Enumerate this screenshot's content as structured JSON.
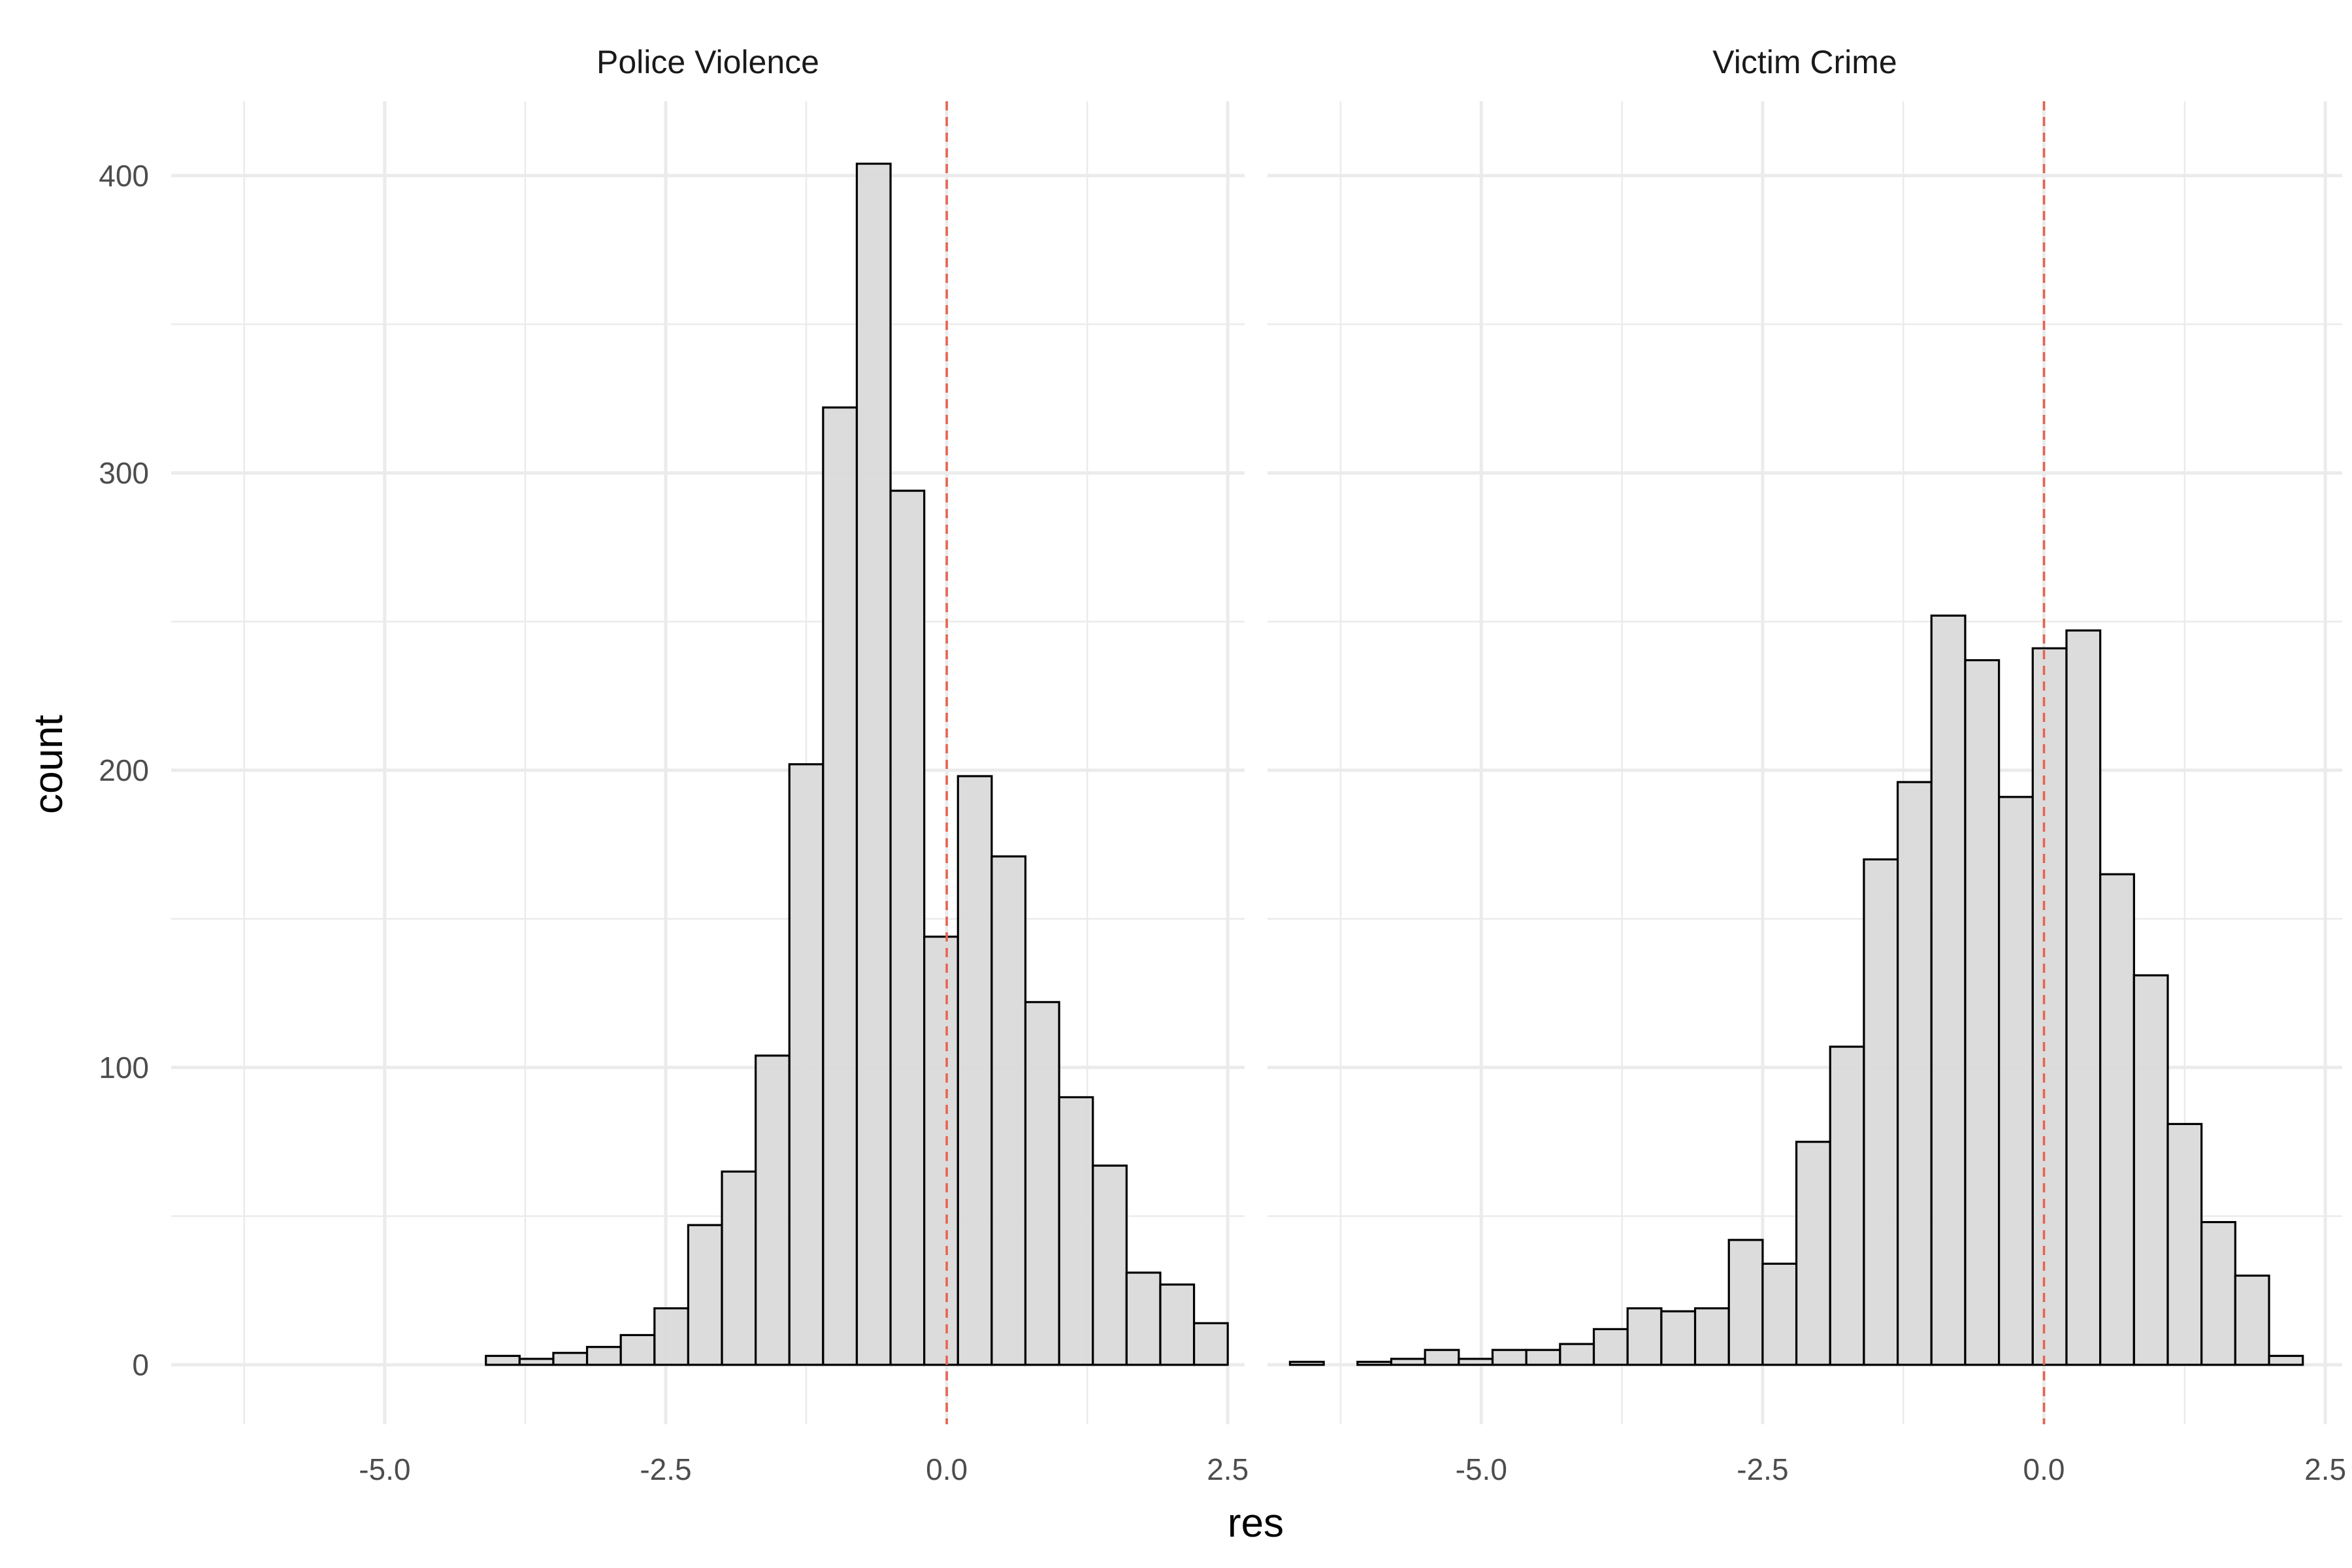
{
  "chart_data": {
    "type": "histogram",
    "xlabel": "res",
    "ylabel": "count",
    "xlim": [
      -6.9,
      2.65
    ],
    "ylim": [
      -20,
      425
    ],
    "x_major_ticks": [
      -5.0,
      -2.5,
      0.0,
      2.5
    ],
    "x_tick_labels": [
      "-5.0",
      "-2.5",
      "0.0",
      "2.5"
    ],
    "x_minor_ticks": [
      -6.25,
      -3.75,
      -1.25,
      1.25
    ],
    "y_major_ticks": [
      0,
      100,
      200,
      300,
      400
    ],
    "y_tick_labels": [
      "0",
      "100",
      "200",
      "300",
      "400"
    ],
    "y_minor_ticks": [
      50,
      150,
      250,
      350
    ],
    "grid": true,
    "reference_line": {
      "x": 0.0,
      "style": "dashed",
      "color": "#e8624f"
    },
    "bar_fill": "#d9d9d9",
    "bar_outline": "#000000",
    "facets": [
      {
        "title": "Police Violence",
        "bins": [
          {
            "x0": -6.5,
            "x1": -6.2,
            "count": 0
          },
          {
            "x0": -6.2,
            "x1": -5.9,
            "count": 0
          },
          {
            "x0": -5.9,
            "x1": -5.6,
            "count": 0
          },
          {
            "x0": -5.6,
            "x1": -5.3,
            "count": 0
          },
          {
            "x0": -5.3,
            "x1": -5.0,
            "count": 0
          },
          {
            "x0": -5.0,
            "x1": -4.7,
            "count": 0
          },
          {
            "x0": -4.7,
            "x1": -4.4,
            "count": 0
          },
          {
            "x0": -4.4,
            "x1": -4.1,
            "count": 0
          },
          {
            "x0": -4.1,
            "x1": -3.8,
            "count": 3
          },
          {
            "x0": -3.8,
            "x1": -3.5,
            "count": 2
          },
          {
            "x0": -3.5,
            "x1": -3.2,
            "count": 4
          },
          {
            "x0": -3.2,
            "x1": -2.9,
            "count": 6
          },
          {
            "x0": -2.9,
            "x1": -2.6,
            "count": 10
          },
          {
            "x0": -2.6,
            "x1": -2.3,
            "count": 19
          },
          {
            "x0": -2.3,
            "x1": -2.0,
            "count": 47
          },
          {
            "x0": -2.0,
            "x1": -1.7,
            "count": 65
          },
          {
            "x0": -1.7,
            "x1": -1.4,
            "count": 104
          },
          {
            "x0": -1.4,
            "x1": -1.1,
            "count": 202
          },
          {
            "x0": -1.1,
            "x1": -0.8,
            "count": 322
          },
          {
            "x0": -0.8,
            "x1": -0.5,
            "count": 404
          },
          {
            "x0": -0.5,
            "x1": -0.2,
            "count": 294
          },
          {
            "x0": -0.2,
            "x1": 0.1,
            "count": 144
          },
          {
            "x0": 0.1,
            "x1": 0.4,
            "count": 198
          },
          {
            "x0": 0.4,
            "x1": 0.7,
            "count": 171
          },
          {
            "x0": 0.7,
            "x1": 1.0,
            "count": 122
          },
          {
            "x0": 1.0,
            "x1": 1.3,
            "count": 90
          },
          {
            "x0": 1.3,
            "x1": 1.6,
            "count": 67
          },
          {
            "x0": 1.6,
            "x1": 1.9,
            "count": 31
          },
          {
            "x0": 1.9,
            "x1": 2.2,
            "count": 27
          },
          {
            "x0": 2.2,
            "x1": 2.5,
            "count": 14
          }
        ]
      },
      {
        "title": "Victim Crime",
        "bins": [
          {
            "x0": -6.7,
            "x1": -6.4,
            "count": 1
          },
          {
            "x0": -6.4,
            "x1": -6.1,
            "count": 0
          },
          {
            "x0": -6.1,
            "x1": -5.8,
            "count": 1
          },
          {
            "x0": -5.8,
            "x1": -5.5,
            "count": 2
          },
          {
            "x0": -5.5,
            "x1": -5.2,
            "count": 5
          },
          {
            "x0": -5.2,
            "x1": -4.9,
            "count": 2
          },
          {
            "x0": -4.9,
            "x1": -4.6,
            "count": 5
          },
          {
            "x0": -4.6,
            "x1": -4.3,
            "count": 5
          },
          {
            "x0": -4.3,
            "x1": -4.0,
            "count": 7
          },
          {
            "x0": -4.0,
            "x1": -3.7,
            "count": 12
          },
          {
            "x0": -3.7,
            "x1": -3.4,
            "count": 19
          },
          {
            "x0": -3.4,
            "x1": -3.1,
            "count": 18
          },
          {
            "x0": -3.1,
            "x1": -2.8,
            "count": 19
          },
          {
            "x0": -2.8,
            "x1": -2.5,
            "count": 42
          },
          {
            "x0": -2.5,
            "x1": -2.2,
            "count": 34
          },
          {
            "x0": -2.2,
            "x1": -1.9,
            "count": 75
          },
          {
            "x0": -1.9,
            "x1": -1.6,
            "count": 107
          },
          {
            "x0": -1.6,
            "x1": -1.3,
            "count": 170
          },
          {
            "x0": -1.3,
            "x1": -1.0,
            "count": 196
          },
          {
            "x0": -1.0,
            "x1": -0.7,
            "count": 252
          },
          {
            "x0": -0.7,
            "x1": -0.4,
            "count": 237
          },
          {
            "x0": -0.4,
            "x1": -0.1,
            "count": 191
          },
          {
            "x0": -0.1,
            "x1": 0.2,
            "count": 241
          },
          {
            "x0": 0.2,
            "x1": 0.5,
            "count": 247
          },
          {
            "x0": 0.5,
            "x1": 0.8,
            "count": 165
          },
          {
            "x0": 0.8,
            "x1": 1.1,
            "count": 131
          },
          {
            "x0": 1.1,
            "x1": 1.4,
            "count": 81
          },
          {
            "x0": 1.4,
            "x1": 1.7,
            "count": 48
          },
          {
            "x0": 1.7,
            "x1": 2.0,
            "count": 30
          },
          {
            "x0": 2.0,
            "x1": 2.3,
            "count": 3
          }
        ]
      }
    ]
  }
}
